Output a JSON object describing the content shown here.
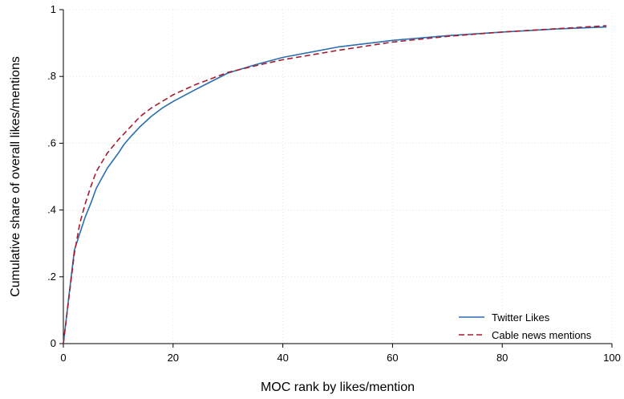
{
  "chart_data": {
    "type": "line",
    "title": "",
    "xlabel": "MOC rank by likes/mention",
    "ylabel": "Cumulative share of overall likes/mentions",
    "xlim": [
      0,
      100
    ],
    "ylim": [
      0,
      1
    ],
    "x_ticks": [
      0,
      20,
      40,
      60,
      80,
      100
    ],
    "x_tick_labels": [
      "0",
      "20",
      "40",
      "60",
      "80",
      "100"
    ],
    "y_ticks": [
      0,
      0.2,
      0.4,
      0.6,
      0.8,
      1
    ],
    "y_tick_labels": [
      "0",
      ".2",
      ".4",
      ".6",
      ".8",
      "1"
    ],
    "grid": true,
    "legend_position": "bottom-right",
    "series": [
      {
        "name": "Twitter Likes",
        "color": "#2a6fb0",
        "dash": "solid",
        "x": [
          0,
          1,
          2,
          3,
          4,
          5,
          6,
          8,
          10,
          11,
          12,
          14,
          16,
          18,
          20,
          24,
          30,
          35,
          40,
          50,
          60,
          70,
          80,
          90,
          99
        ],
        "y": [
          0,
          0.14,
          0.28,
          0.33,
          0.38,
          0.42,
          0.465,
          0.525,
          0.57,
          0.595,
          0.615,
          0.65,
          0.68,
          0.705,
          0.725,
          0.76,
          0.81,
          0.835,
          0.857,
          0.888,
          0.908,
          0.922,
          0.933,
          0.942,
          0.948
        ]
      },
      {
        "name": "Cable news mentions",
        "color": "#a51c30",
        "dash": "dashed",
        "x": [
          0,
          1,
          2,
          3,
          4,
          5,
          6,
          8,
          10,
          12,
          14,
          16,
          18,
          20,
          24,
          30,
          35,
          40,
          50,
          60,
          70,
          80,
          90,
          99
        ],
        "y": [
          0,
          0.135,
          0.27,
          0.36,
          0.42,
          0.47,
          0.515,
          0.57,
          0.61,
          0.645,
          0.68,
          0.705,
          0.725,
          0.745,
          0.775,
          0.812,
          0.832,
          0.85,
          0.878,
          0.903,
          0.92,
          0.933,
          0.943,
          0.952
        ]
      }
    ]
  }
}
